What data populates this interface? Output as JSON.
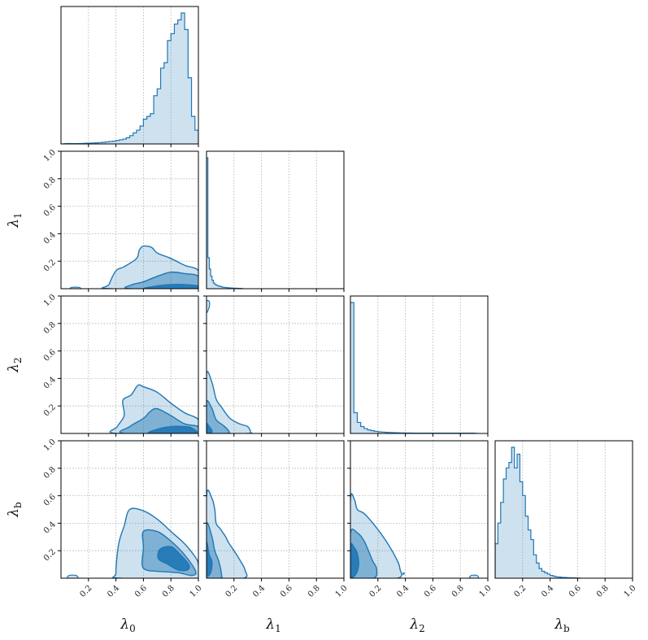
{
  "chart_data": {
    "type": "corner",
    "parameters": [
      {
        "symbol": "λ",
        "sub": "0"
      },
      {
        "symbol": "λ",
        "sub": "1"
      },
      {
        "symbol": "λ",
        "sub": "2"
      },
      {
        "symbol": "λ",
        "sub": "b"
      }
    ],
    "xlim": [
      0,
      1
    ],
    "ylim": [
      0,
      1
    ],
    "x_tick_labels": [
      "0.2",
      "0.4",
      "0.6",
      "0.8",
      "1.0"
    ],
    "y_tick_labels": [
      "0.2",
      "0.4",
      "0.6",
      "0.8",
      "1.0"
    ],
    "grid": true,
    "color": "#1f77b4",
    "histograms": [
      {
        "parameter": "λ0",
        "bin_edges_from": 0.0,
        "bin_width": 0.025,
        "counts": [
          0,
          0.002,
          0.003,
          0.002,
          0.002,
          0.003,
          0.004,
          0.005,
          0.006,
          0.007,
          0.008,
          0.01,
          0.012,
          0.015,
          0.018,
          0.02,
          0.025,
          0.03,
          0.035,
          0.045,
          0.06,
          0.08,
          0.1,
          0.13,
          0.18,
          0.2,
          0.22,
          0.35,
          0.4,
          0.55,
          0.59,
          0.75,
          0.8,
          0.87,
          0.9,
          0.95,
          0.83,
          0.48,
          0.2,
          0.1
        ]
      },
      {
        "parameter": "λ1",
        "bin_edges_from": 0.0,
        "bin_width": 0.01,
        "counts": [
          0.93,
          0.22,
          0.14,
          0.09,
          0.06,
          0.04,
          0.03,
          0.025,
          0.02,
          0.018,
          0.015,
          0.012,
          0.01,
          0.009,
          0.008,
          0.007,
          0.006,
          0.005,
          0.005,
          0.004,
          0.004,
          0.003,
          0.003,
          0.002,
          0.002,
          0.002
        ]
      },
      {
        "parameter": "λ2",
        "bin_edges_from": 0.0,
        "bin_width": 0.025,
        "counts": [
          0.95,
          0.15,
          0.08,
          0.05,
          0.035,
          0.025,
          0.02,
          0.015,
          0.012,
          0.01,
          0.008,
          0.007,
          0.006,
          0.005,
          0.004,
          0.004,
          0.003,
          0.003,
          0.002,
          0.002,
          0.002,
          0.002,
          0.002,
          0.002,
          0.002,
          0.002,
          0.002,
          0.002,
          0.002,
          0.002,
          0.002,
          0.002,
          0.002,
          0.002,
          0.002,
          0.002,
          0.001
        ]
      },
      {
        "parameter": "λb",
        "bin_edges_from": 0.0,
        "bin_width": 0.02,
        "counts": [
          0.25,
          0.4,
          0.55,
          0.72,
          0.8,
          0.84,
          0.95,
          0.8,
          0.9,
          0.7,
          0.6,
          0.45,
          0.35,
          0.28,
          0.17,
          0.11,
          0.07,
          0.05,
          0.04,
          0.03,
          0.02,
          0.015,
          0.01,
          0.008,
          0.006,
          0.005,
          0.004,
          0.003,
          0.002,
          0.002,
          0.001
        ]
      }
    ],
    "contours": [
      {
        "x_param": "λ0",
        "y_param": "λ1",
        "levels": [
          [
            [
              0.35,
              0.03
            ],
            [
              0.4,
              0.13
            ],
            [
              0.46,
              0.16
            ],
            [
              0.55,
              0.22
            ],
            [
              0.57,
              0.28
            ],
            [
              0.6,
              0.31
            ],
            [
              0.66,
              0.3
            ],
            [
              0.7,
              0.26
            ],
            [
              0.8,
              0.22
            ],
            [
              0.9,
              0.17
            ],
            [
              1.0,
              0.13
            ],
            [
              1.0,
              0.0
            ],
            [
              0.35,
              0.0
            ]
          ],
          [
            [
              0.5,
              0.0
            ],
            [
              0.52,
              0.03
            ],
            [
              0.6,
              0.05
            ],
            [
              0.7,
              0.09
            ],
            [
              0.8,
              0.12
            ],
            [
              0.9,
              0.11
            ],
            [
              1.0,
              0.09
            ],
            [
              1.0,
              0.0
            ]
          ],
          [
            [
              0.62,
              0.0
            ],
            [
              0.7,
              0.02
            ],
            [
              0.8,
              0.03
            ],
            [
              0.9,
              0.03
            ],
            [
              1.0,
              0.02
            ],
            [
              1.0,
              0.0
            ]
          ]
        ],
        "islands": [
          [
            [
              0.07,
              0.0
            ],
            [
              0.08,
              0.01
            ],
            [
              0.13,
              0.01
            ],
            [
              0.14,
              0.0
            ]
          ]
        ]
      },
      {
        "x_param": "λ0",
        "y_param": "λ2",
        "levels": [
          [
            [
              0.4,
              0.0
            ],
            [
              0.41,
              0.05
            ],
            [
              0.46,
              0.13
            ],
            [
              0.45,
              0.24
            ],
            [
              0.51,
              0.28
            ],
            [
              0.56,
              0.35
            ],
            [
              0.6,
              0.34
            ],
            [
              0.7,
              0.3
            ],
            [
              0.8,
              0.22
            ],
            [
              0.9,
              0.15
            ],
            [
              1.0,
              0.1
            ],
            [
              1.0,
              0.0
            ]
          ],
          [
            [
              0.46,
              0.0
            ],
            [
              0.5,
              0.05
            ],
            [
              0.6,
              0.11
            ],
            [
              0.65,
              0.16
            ],
            [
              0.7,
              0.18
            ],
            [
              0.8,
              0.13
            ],
            [
              0.9,
              0.07
            ],
            [
              1.0,
              0.05
            ],
            [
              1.0,
              0.0
            ]
          ],
          [
            [
              0.65,
              0.0
            ],
            [
              0.7,
              0.03
            ],
            [
              0.8,
              0.05
            ],
            [
              0.9,
              0.05
            ],
            [
              0.95,
              0.04
            ],
            [
              0.97,
              0.0
            ]
          ]
        ]
      },
      {
        "x_param": "λ0",
        "y_param": "λb",
        "levels": [
          [
            [
              0.4,
              0.04
            ],
            [
              0.42,
              0.25
            ],
            [
              0.46,
              0.38
            ],
            [
              0.5,
              0.5
            ],
            [
              0.6,
              0.49
            ],
            [
              0.7,
              0.43
            ],
            [
              0.8,
              0.34
            ],
            [
              0.9,
              0.25
            ],
            [
              0.98,
              0.15
            ],
            [
              1.0,
              0.1
            ],
            [
              1.0,
              0.0
            ],
            [
              0.43,
              0.0
            ]
          ],
          [
            [
              0.59,
              0.1
            ],
            [
              0.6,
              0.22
            ],
            [
              0.6,
              0.34
            ],
            [
              0.7,
              0.34
            ],
            [
              0.8,
              0.27
            ],
            [
              0.9,
              0.17
            ],
            [
              0.98,
              0.05
            ],
            [
              0.95,
              0.02
            ],
            [
              0.85,
              0.04
            ],
            [
              0.7,
              0.05
            ],
            [
              0.62,
              0.06
            ]
          ],
          [
            [
              0.71,
              0.14
            ],
            [
              0.72,
              0.21
            ],
            [
              0.8,
              0.23
            ],
            [
              0.86,
              0.18
            ],
            [
              0.93,
              0.1
            ],
            [
              0.92,
              0.06
            ],
            [
              0.85,
              0.06
            ],
            [
              0.78,
              0.1
            ]
          ]
        ],
        "islands": [
          [
            [
              0.05,
              0.0
            ],
            [
              0.06,
              0.02
            ],
            [
              0.11,
              0.02
            ],
            [
              0.12,
              0.0
            ]
          ]
        ]
      },
      {
        "x_param": "λ1",
        "y_param": "λ2",
        "levels": [
          [
            [
              0.0,
              0.43
            ],
            [
              0.04,
              0.37
            ],
            [
              0.07,
              0.25
            ],
            [
              0.11,
              0.19
            ],
            [
              0.17,
              0.11
            ],
            [
              0.24,
              0.07
            ],
            [
              0.3,
              0.05
            ],
            [
              0.32,
              0.01
            ],
            [
              0.3,
              0.0
            ],
            [
              0.0,
              0.0
            ]
          ],
          [
            [
              0.0,
              0.23
            ],
            [
              0.04,
              0.18
            ],
            [
              0.07,
              0.1
            ],
            [
              0.12,
              0.06
            ],
            [
              0.16,
              0.02
            ],
            [
              0.15,
              0.0
            ],
            [
              0.0,
              0.0
            ]
          ],
          [
            [
              0.0,
              0.07
            ],
            [
              0.02,
              0.05
            ],
            [
              0.04,
              0.02
            ],
            [
              0.03,
              0.0
            ],
            [
              0.0,
              0.0
            ]
          ]
        ],
        "islands": [
          [
            [
              0.0,
              0.88
            ],
            [
              0.02,
              0.92
            ],
            [
              0.02,
              0.96
            ],
            [
              0.0,
              0.96
            ]
          ]
        ]
      },
      {
        "x_param": "λ1",
        "y_param": "λb",
        "levels": [
          [
            [
              0.0,
              0.6
            ],
            [
              0.04,
              0.58
            ],
            [
              0.06,
              0.5
            ],
            [
              0.07,
              0.4
            ],
            [
              0.1,
              0.36
            ],
            [
              0.12,
              0.33
            ],
            [
              0.14,
              0.3
            ],
            [
              0.16,
              0.26
            ],
            [
              0.2,
              0.2
            ],
            [
              0.25,
              0.12
            ],
            [
              0.28,
              0.06
            ],
            [
              0.27,
              0.0
            ],
            [
              0.0,
              0.0
            ]
          ],
          [
            [
              0.0,
              0.39
            ],
            [
              0.04,
              0.3
            ],
            [
              0.06,
              0.2
            ],
            [
              0.09,
              0.12
            ],
            [
              0.11,
              0.02
            ],
            [
              0.1,
              0.0
            ],
            [
              0.0,
              0.0
            ]
          ],
          [
            [
              0.0,
              0.26
            ],
            [
              0.02,
              0.17
            ],
            [
              0.04,
              0.12
            ],
            [
              0.03,
              0.04
            ],
            [
              0.0,
              0.03
            ]
          ]
        ]
      },
      {
        "x_param": "λ2",
        "y_param": "λb",
        "levels": [
          [
            [
              0.0,
              0.57
            ],
            [
              0.03,
              0.57
            ],
            [
              0.05,
              0.5
            ],
            [
              0.1,
              0.47
            ],
            [
              0.18,
              0.38
            ],
            [
              0.26,
              0.27
            ],
            [
              0.33,
              0.15
            ],
            [
              0.36,
              0.07
            ],
            [
              0.34,
              0.0
            ],
            [
              0.0,
              0.0
            ]
          ],
          [
            [
              0.0,
              0.33
            ],
            [
              0.05,
              0.33
            ],
            [
              0.1,
              0.27
            ],
            [
              0.16,
              0.13
            ],
            [
              0.19,
              0.07
            ],
            [
              0.17,
              0.0
            ],
            [
              0.0,
              0.0
            ]
          ],
          [
            [
              0.0,
              0.24
            ],
            [
              0.03,
              0.22
            ],
            [
              0.05,
              0.18
            ],
            [
              0.06,
              0.1
            ],
            [
              0.04,
              0.03
            ],
            [
              0.0,
              0.02
            ]
          ]
        ],
        "islands": [
          [
            [
              0.87,
              0.0
            ],
            [
              0.88,
              0.02
            ],
            [
              0.92,
              0.02
            ],
            [
              0.93,
              0.0
            ]
          ],
          [
            [
              0.38,
              0.03
            ],
            [
              0.39,
              0.04
            ],
            [
              0.39,
              0.03
            ]
          ]
        ]
      }
    ]
  }
}
